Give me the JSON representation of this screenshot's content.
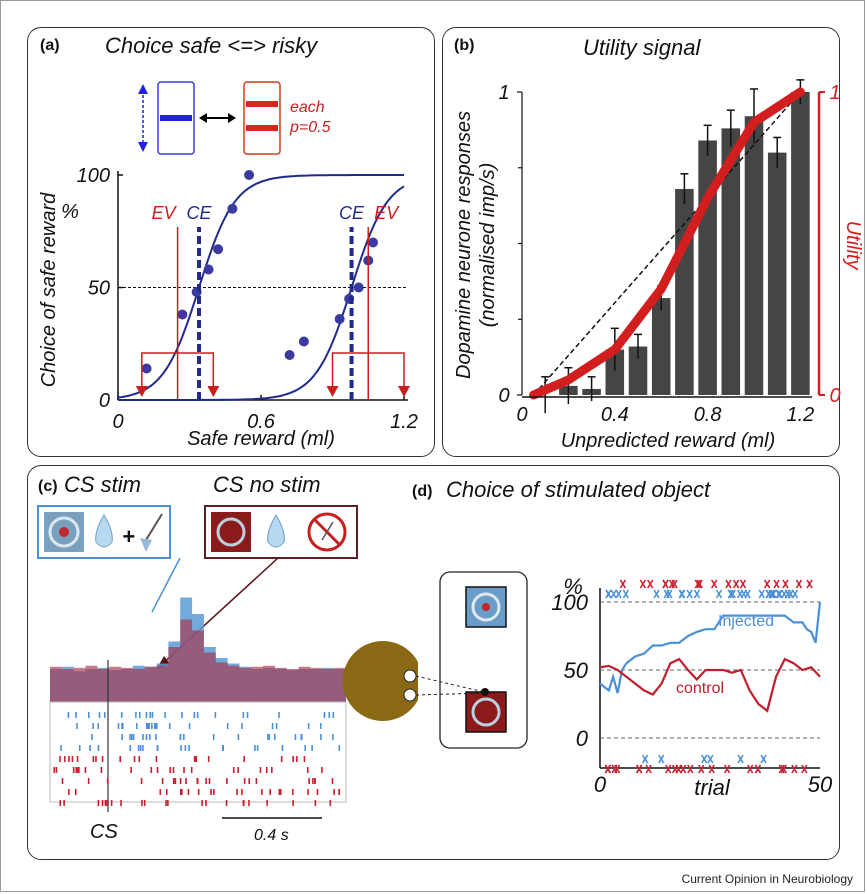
{
  "footer": {
    "credit": "Current Opinion in Neurobiology"
  },
  "colors": {
    "blue_dark": "#1f2a8c",
    "red": "#c81e1e",
    "gray_bar": "#454545",
    "light_blue": "#4a90d9",
    "dark_red": "#b01a2e",
    "brown": "#8b6914"
  },
  "panel_a": {
    "label": "(a)",
    "title": "Choice safe <=> risky",
    "gamble_note_1": "each",
    "gamble_note_2": "p=0.5",
    "chart_data": {
      "type": "scatter",
      "ylabel": "Choice of safe reward",
      "ylabel_unit": "%",
      "xlabel": "Safe reward (ml)",
      "xlim": [
        0,
        1.2
      ],
      "ylim": [
        0,
        100
      ],
      "xticks": [
        "0",
        "0.6",
        "1.2"
      ],
      "yticks": [
        "0",
        "50",
        "100"
      ],
      "reference_line_y": 50,
      "marker_labels": {
        "ev": "EV",
        "ce": "CE"
      },
      "series": [
        {
          "points": [
            [
              0.12,
              14
            ],
            [
              0.27,
              38
            ],
            [
              0.33,
              48
            ],
            [
              0.38,
              58
            ],
            [
              0.42,
              67
            ],
            [
              0.48,
              85
            ],
            [
              0.55,
              100
            ]
          ],
          "ce": 0.34,
          "ev": 0.25
        },
        {
          "points": [
            [
              0.72,
              20
            ],
            [
              0.78,
              26
            ],
            [
              0.93,
              36
            ],
            [
              0.97,
              45
            ],
            [
              1.01,
              50
            ],
            [
              1.05,
              62
            ],
            [
              1.07,
              70
            ]
          ],
          "ce": 0.98,
          "ev": 1.05
        }
      ],
      "gamble_outcomes": [
        [
          0.1,
          0.4
        ],
        [
          0.9,
          1.2
        ]
      ]
    }
  },
  "panel_b": {
    "label": "(b)",
    "title": "Utility signal",
    "chart_data": {
      "type": "bar",
      "ylabel_line1": "Dopamine neurone responses",
      "ylabel_line2": "(normalised imp/s)",
      "y2label": "Utility",
      "xlabel": "Unpredicted reward (ml)",
      "xlim": [
        0,
        1.25
      ],
      "ylim": [
        0,
        1
      ],
      "y2lim": [
        0,
        1
      ],
      "xticks": [
        "0",
        "0.4",
        "0.8",
        "1.2"
      ],
      "yticks": [
        "0",
        "1"
      ],
      "y2ticks": [
        "0",
        "1"
      ],
      "x": [
        0.1,
        0.2,
        0.3,
        0.4,
        0.5,
        0.6,
        0.7,
        0.8,
        0.9,
        1.0,
        1.1,
        1.2
      ],
      "values": [
        0.0,
        0.03,
        0.02,
        0.15,
        0.16,
        0.32,
        0.68,
        0.84,
        0.88,
        0.92,
        0.8,
        1.0
      ],
      "errors": [
        0.06,
        0.06,
        0.04,
        0.07,
        0.04,
        0.04,
        0.05,
        0.05,
        0.06,
        0.09,
        0.05,
        0.04
      ],
      "utility_curve": [
        [
          0.05,
          0.0
        ],
        [
          0.2,
          0.05
        ],
        [
          0.4,
          0.15
        ],
        [
          0.6,
          0.35
        ],
        [
          0.8,
          0.65
        ],
        [
          1.0,
          0.9
        ],
        [
          1.2,
          1.0
        ]
      ],
      "linear_reference": [
        [
          0.05,
          0.0
        ],
        [
          1.2,
          1.0
        ]
      ]
    }
  },
  "panel_c": {
    "label": "(c)",
    "title_stim": "CS stim",
    "title_nostim": "CS no stim",
    "plus": "+",
    "cs_label": "CS",
    "scale_label": "0.4 s",
    "chart_data": {
      "type": "area",
      "series": [
        {
          "name": "CS stim",
          "values": [
            0.3,
            0.32,
            0.28,
            0.3,
            0.31,
            0.29,
            0.3,
            0.33,
            0.32,
            0.35,
            0.55,
            0.95,
            0.8,
            0.5,
            0.4,
            0.35,
            0.32,
            0.3,
            0.31,
            0.3,
            0.29,
            0.3,
            0.3,
            0.31,
            0.3
          ]
        },
        {
          "name": "CS no stim",
          "values": [
            0.32,
            0.3,
            0.31,
            0.33,
            0.3,
            0.32,
            0.31,
            0.3,
            0.32,
            0.33,
            0.5,
            0.75,
            0.65,
            0.45,
            0.36,
            0.33,
            0.31,
            0.32,
            0.33,
            0.31,
            0.3,
            0.32,
            0.31,
            0.3,
            0.31
          ]
        }
      ]
    }
  },
  "panel_d": {
    "label": "(d)",
    "title": "Choice of stimulated object",
    "chart_data": {
      "type": "line",
      "ylabel": "%",
      "xlabel": "trial",
      "xlim": [
        0,
        50
      ],
      "ylim": [
        0,
        100
      ],
      "xticks": [
        "0",
        "50"
      ],
      "yticks": [
        "0",
        "50",
        "100"
      ],
      "series": [
        {
          "name": "Injected",
          "x": [
            0,
            2,
            3,
            4,
            5,
            6,
            8,
            10,
            12,
            14,
            16,
            18,
            20,
            22,
            24,
            26,
            28,
            30,
            32,
            34,
            36,
            38,
            40,
            42,
            44,
            46,
            47,
            48,
            49,
            50
          ],
          "values": [
            40,
            35,
            45,
            33,
            50,
            55,
            60,
            62,
            68,
            68,
            70,
            70,
            75,
            78,
            80,
            80,
            90,
            90,
            90,
            90,
            90,
            90,
            90,
            90,
            85,
            85,
            80,
            78,
            70,
            100
          ]
        },
        {
          "name": "control",
          "x": [
            0,
            2,
            4,
            6,
            8,
            10,
            12,
            14,
            16,
            18,
            20,
            22,
            24,
            26,
            28,
            30,
            32,
            34,
            36,
            38,
            40,
            42,
            44,
            46,
            48,
            50
          ],
          "values": [
            52,
            53,
            50,
            45,
            40,
            35,
            32,
            40,
            55,
            58,
            50,
            43,
            50,
            50,
            50,
            48,
            50,
            35,
            25,
            20,
            45,
            58,
            55,
            50,
            52,
            45
          ]
        }
      ],
      "reference_lines_y": [
        0,
        50,
        100
      ]
    }
  }
}
